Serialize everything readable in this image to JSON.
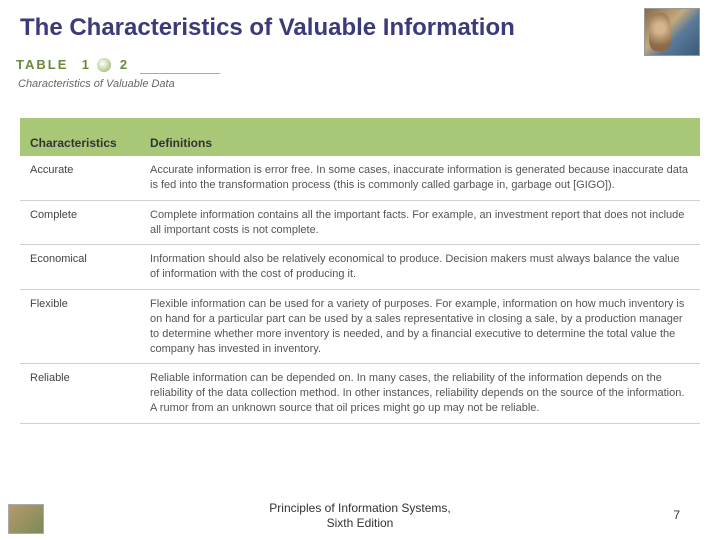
{
  "title": "The Characteristics of Valuable Information",
  "table_label": {
    "word": "TABLE",
    "num1": "1",
    "num2": "2"
  },
  "table_caption": "Characteristics of Valuable Data",
  "columns": [
    "Characteristics",
    "Definitions"
  ],
  "rows": [
    {
      "name": "Accurate",
      "def": "Accurate information is error free. In some cases, inaccurate information is generated because inaccurate data is fed into the transformation process (this is commonly called garbage in, garbage out [GIGO])."
    },
    {
      "name": "Complete",
      "def": "Complete information contains all the important facts. For example, an investment report that does not include all important costs is not complete."
    },
    {
      "name": "Economical",
      "def": "Information should also be relatively economical to produce. Decision makers must always balance the value of information with the cost of producing it."
    },
    {
      "name": "Flexible",
      "def": "Flexible information can be used for a variety of purposes. For example, information on how much inventory is on hand for a particular part can be used by a sales representative in closing a sale, by a production manager to determine whether more inventory is needed, and by a financial executive to determine the total value the company has invested in inventory."
    },
    {
      "name": "Reliable",
      "def": "Reliable information can be depended on. In many cases, the reliability of the information depends on the reliability of the data collection method. In other instances, reliability depends on the source of the information. A rumor from an unknown source that oil prices might go up may not be reliable."
    }
  ],
  "footer": {
    "line1": "Principles of Information Systems,",
    "line2": "Sixth Edition"
  },
  "page_number": "7",
  "colors": {
    "title": "#3b3b7a",
    "header_bg": "#a8c878",
    "header_top": "#d8e8f4",
    "row_border": "#d0d0d0",
    "table_label": "#6a8a3a"
  }
}
